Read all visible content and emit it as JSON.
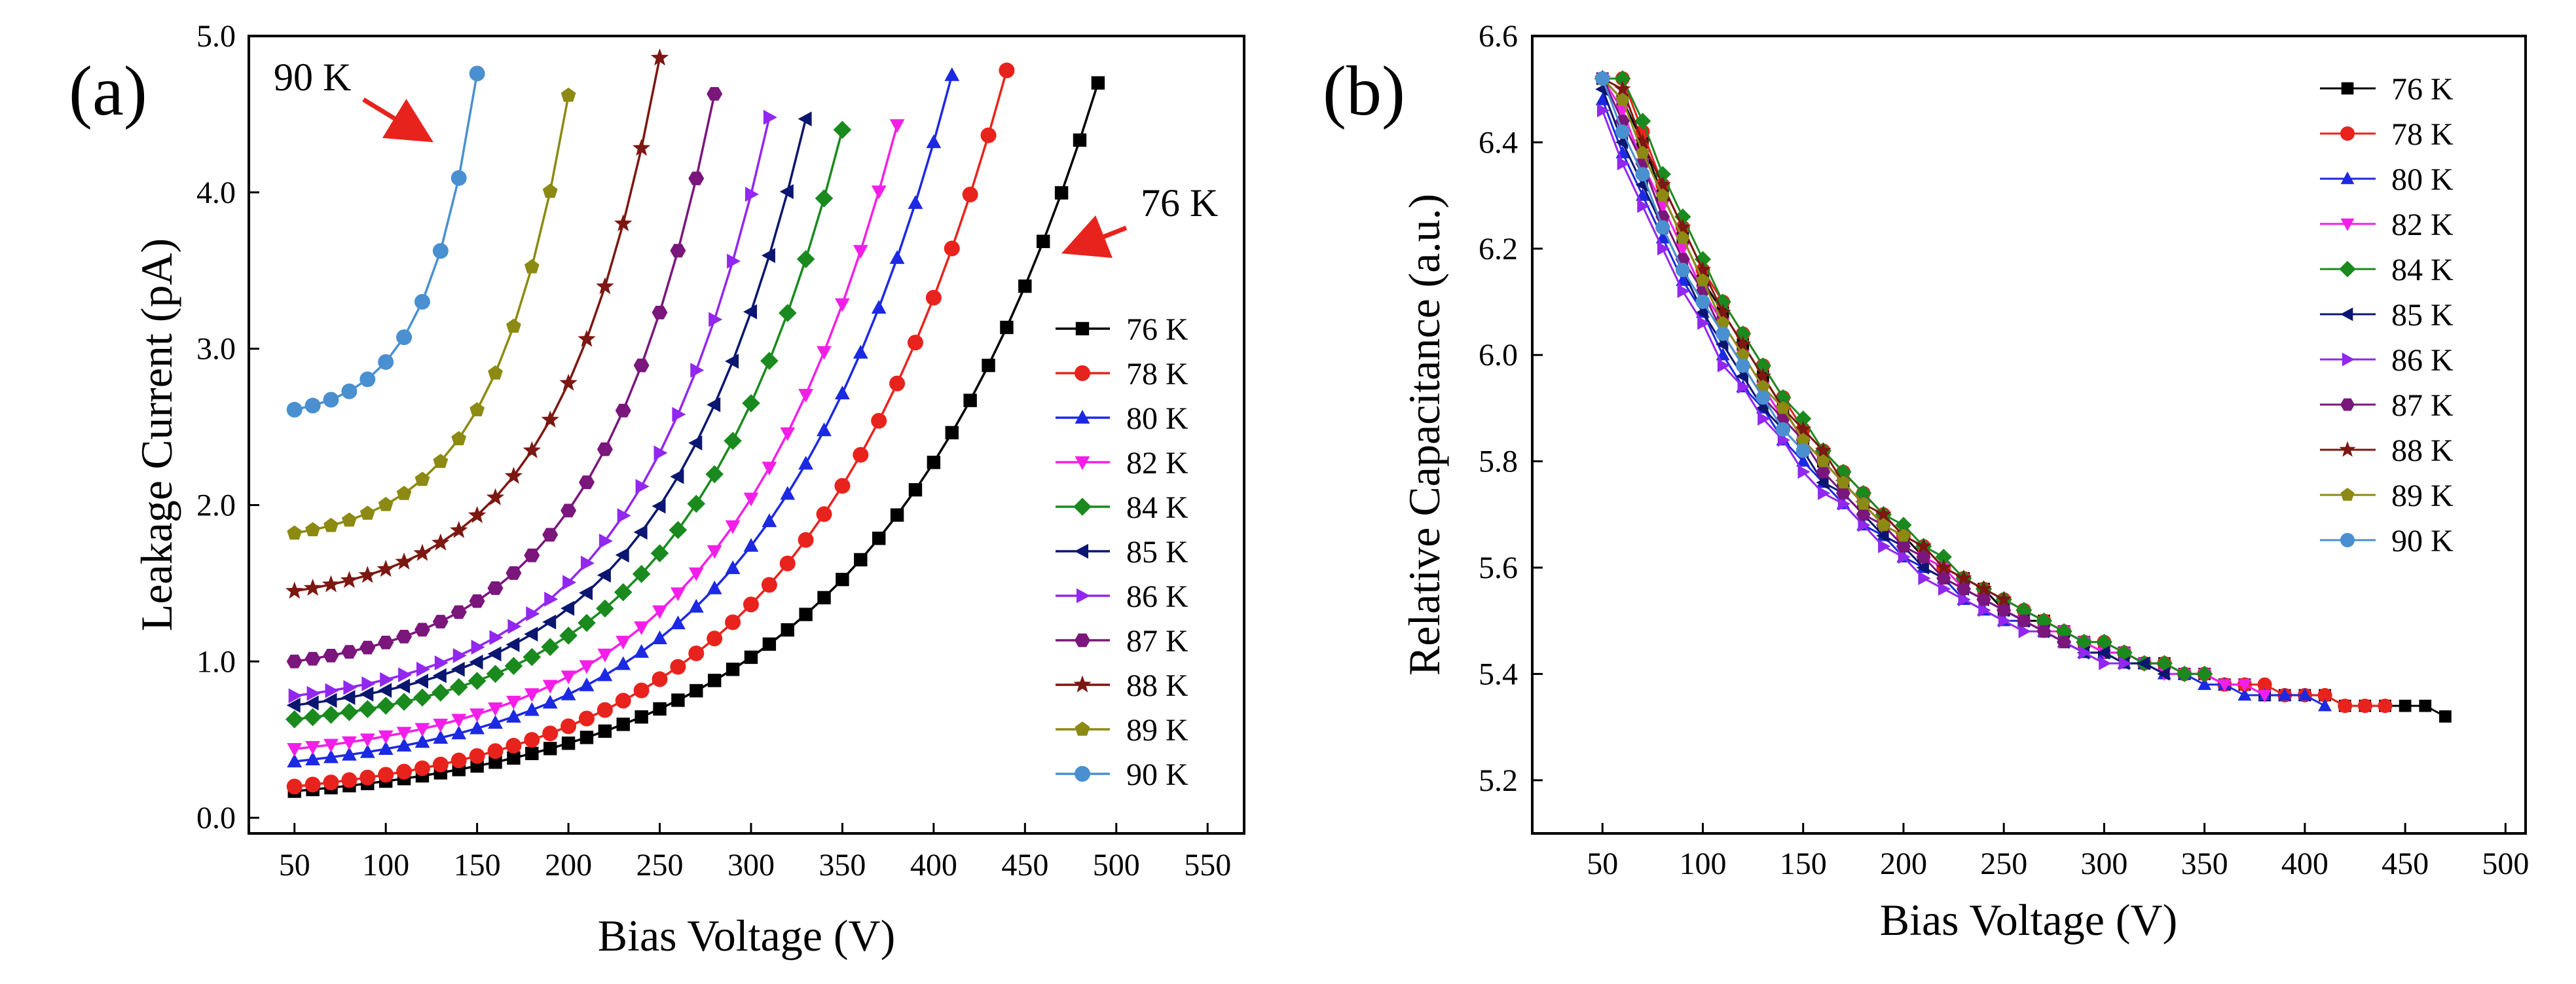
{
  "chart_data": [
    {
      "type": "line",
      "panel_label": "(a)",
      "xlabel": "Bias Voltage (V)",
      "ylabel": "Leakage Current (pA)",
      "xlim": [
        25,
        570
      ],
      "ylim": [
        -0.1,
        5.0
      ],
      "x_ticks": [
        50,
        100,
        150,
        200,
        250,
        300,
        350,
        400,
        450,
        500,
        550
      ],
      "y_ticks": [
        0.0,
        1.0,
        2.0,
        3.0,
        4.0,
        5.0
      ],
      "x_tick_labels": [
        "50",
        "100",
        "150",
        "200",
        "250",
        "300",
        "350",
        "400",
        "450",
        "500",
        "550"
      ],
      "y_tick_labels": [
        "0.0",
        "1.0",
        "2.0",
        "3.0",
        "4.0",
        "5.0"
      ],
      "legend_position": "right-middle",
      "annotations": [
        {
          "text": "90 K",
          "series": "90 K"
        },
        {
          "text": "76 K",
          "series": "76 K"
        }
      ],
      "series": [
        {
          "name": "76 K",
          "color": "#000000",
          "marker": "square",
          "start": 0.17,
          "end": 4.7,
          "xmin": 50,
          "xmax": 490,
          "step": 10
        },
        {
          "name": "78 K",
          "color": "#e8231d",
          "marker": "circle",
          "start": 0.2,
          "end": 4.78,
          "xmin": 50,
          "xmax": 440,
          "step": 10
        },
        {
          "name": "80 K",
          "color": "#1c29e3",
          "marker": "triangle-up",
          "start": 0.36,
          "end": 4.75,
          "xmin": 50,
          "xmax": 410,
          "step": 10
        },
        {
          "name": "82 K",
          "color": "#f31fe8",
          "marker": "triangle-down",
          "start": 0.44,
          "end": 4.43,
          "xmin": 50,
          "xmax": 380,
          "step": 10
        },
        {
          "name": "84 K",
          "color": "#1a8a1f",
          "marker": "diamond",
          "start": 0.63,
          "end": 4.4,
          "xmin": 50,
          "xmax": 350,
          "step": 10
        },
        {
          "name": "85 K",
          "color": "#0a1670",
          "marker": "triangle-left",
          "start": 0.72,
          "end": 4.47,
          "xmin": 50,
          "xmax": 330,
          "step": 10
        },
        {
          "name": "86 K",
          "color": "#9227f0",
          "marker": "triangle-right",
          "start": 0.78,
          "end": 4.48,
          "xmin": 50,
          "xmax": 310,
          "step": 10
        },
        {
          "name": "87 K",
          "color": "#7a167c",
          "marker": "hexagon",
          "start": 1.0,
          "end": 4.63,
          "xmin": 50,
          "xmax": 280,
          "step": 10
        },
        {
          "name": "88 K",
          "color": "#7d1712",
          "marker": "star",
          "start": 1.45,
          "end": 4.86,
          "xmin": 50,
          "xmax": 250,
          "step": 10
        },
        {
          "name": "89 K",
          "color": "#8c8a12",
          "marker": "pentagon",
          "start": 1.82,
          "end": 4.62,
          "xmin": 50,
          "xmax": 200,
          "step": 10
        },
        {
          "name": "90 K",
          "color": "#4a90d0",
          "marker": "circle",
          "start": 2.61,
          "end": 4.76,
          "xmin": 50,
          "xmax": 150,
          "step": 10
        }
      ]
    },
    {
      "type": "line",
      "panel_label": "(b)",
      "xlabel": "Bias Voltage (V)",
      "ylabel": "Relative Capacitance (a.u.)",
      "xlim": [
        15,
        510
      ],
      "ylim": [
        5.1,
        6.6
      ],
      "x_ticks": [
        50,
        100,
        150,
        200,
        250,
        300,
        350,
        400,
        450,
        500
      ],
      "y_ticks": [
        5.2,
        5.4,
        5.6,
        5.8,
        6.0,
        6.2,
        6.4,
        6.6
      ],
      "x_tick_labels": [
        "50",
        "100",
        "150",
        "200",
        "250",
        "300",
        "350",
        "400",
        "450",
        "500"
      ],
      "y_tick_labels": [
        "5.2",
        "5.4",
        "5.6",
        "5.8",
        "6.0",
        "6.2",
        "6.4",
        "6.6"
      ],
      "legend_position": "top-right",
      "series": [
        {
          "name": "76 K",
          "color": "#000000",
          "marker": "square",
          "xmax": 470,
          "floor": 5.25,
          "shift": 8
        },
        {
          "name": "78 K",
          "color": "#e8231d",
          "marker": "circle",
          "xmax": 440,
          "floor": 5.27,
          "shift": 12
        },
        {
          "name": "80 K",
          "color": "#1c29e3",
          "marker": "triangle-up",
          "xmax": 410,
          "floor": 5.29,
          "shift": -5
        },
        {
          "name": "82 K",
          "color": "#f31fe8",
          "marker": "triangle-down",
          "xmax": 380,
          "floor": 5.32,
          "shift": 5
        },
        {
          "name": "84 K",
          "color": "#1a8a1f",
          "marker": "diamond",
          "xmax": 350,
          "floor": 5.36,
          "shift": 14
        },
        {
          "name": "85 K",
          "color": "#0a1670",
          "marker": "triangle-left",
          "xmax": 330,
          "floor": 5.29,
          "shift": -2
        },
        {
          "name": "86 K",
          "color": "#9227f0",
          "marker": "triangle-right",
          "xmax": 310,
          "floor": 5.3,
          "shift": -9
        },
        {
          "name": "87 K",
          "color": "#7a167c",
          "marker": "hexagon",
          "xmax": 280,
          "floor": 5.36,
          "shift": 3
        },
        {
          "name": "88 K",
          "color": "#7d1712",
          "marker": "star",
          "xmax": 250,
          "floor": 5.48,
          "shift": 10
        },
        {
          "name": "89 K",
          "color": "#8c8a12",
          "marker": "pentagon",
          "xmax": 200,
          "floor": 5.6,
          "shift": 7
        },
        {
          "name": "90 K",
          "color": "#4a90d0",
          "marker": "circle",
          "xmax": 150,
          "floor": 5.78,
          "shift": 0
        }
      ]
    }
  ]
}
